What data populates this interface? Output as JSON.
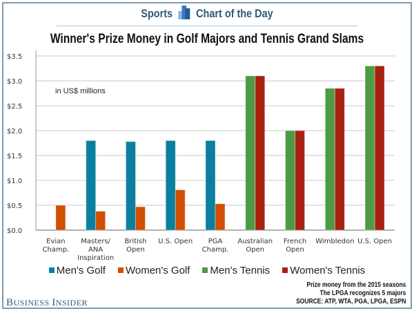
{
  "header": {
    "section": "Sports",
    "label": "Chart of the Day"
  },
  "chart_data": {
    "type": "bar",
    "title": "Winner's Prize Money in Golf Majors and Tennis Grand Slams",
    "annotation": "in US$ millions",
    "categories": [
      [
        "Evian",
        "Champ."
      ],
      [
        "Masters/",
        "ANA",
        "Inspiration"
      ],
      [
        "British",
        "Open"
      ],
      [
        "U.S. Open"
      ],
      [
        "PGA",
        "Champ."
      ],
      [
        "Australian",
        "Open"
      ],
      [
        "French",
        "Open"
      ],
      [
        "Wimbledon"
      ],
      [
        "U.S. Open"
      ]
    ],
    "series": [
      {
        "name": "Men's Golf",
        "color": "#0a7fa0",
        "values": [
          null,
          1.8,
          1.78,
          1.8,
          1.8,
          null,
          null,
          null,
          null
        ]
      },
      {
        "name": "Women's Golf",
        "color": "#d04f00",
        "values": [
          0.5,
          0.38,
          0.47,
          0.81,
          0.53,
          null,
          null,
          null,
          null
        ]
      },
      {
        "name": "Men's Tennis",
        "color": "#4c9a44",
        "values": [
          null,
          null,
          null,
          null,
          null,
          3.1,
          2.0,
          2.85,
          3.3
        ]
      },
      {
        "name": "Women's Tennis",
        "color": "#a8200f",
        "values": [
          null,
          null,
          null,
          null,
          null,
          3.1,
          2.0,
          2.85,
          3.3
        ]
      }
    ],
    "yticks": [
      "$0.0",
      "$0.5",
      "$1.0",
      "$1.5",
      "$2.0",
      "$2.5",
      "$3.0",
      "$3.5"
    ],
    "ylim": [
      0,
      3.5
    ],
    "grid": true,
    "legend": "bottom"
  },
  "notes": [
    "Prize money from the 2015 seasons",
    "The LPGA recognizes 5 majors",
    "SOURCE: ATP, WTA, PGA, LPGA, ESPN"
  ],
  "logo": "Business Insider"
}
